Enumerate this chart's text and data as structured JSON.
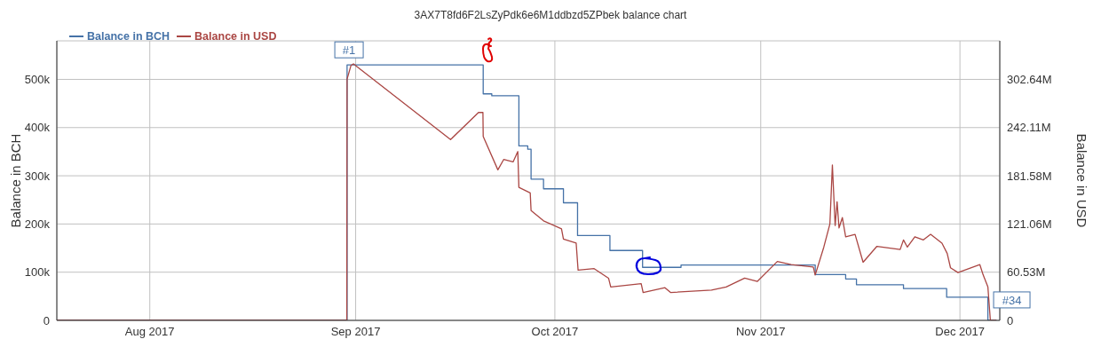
{
  "chart_data": {
    "type": "line",
    "title": "3AX7T8fd6F2LsZyPdk6e6M1ddbzd5ZPbek balance chart",
    "ylabel": "Balance in BCH",
    "y2label": "Balance in USD",
    "xlim": [
      "2017-07-18",
      "2017-12-07"
    ],
    "xticks": [
      {
        "value": "2017-08-01",
        "label": "Aug 2017"
      },
      {
        "value": "2017-09-01",
        "label": "Sep 2017"
      },
      {
        "value": "2017-10-01",
        "label": "Oct 2017"
      },
      {
        "value": "2017-11-01",
        "label": "Nov 2017"
      },
      {
        "value": "2017-12-01",
        "label": "Dec 2017"
      }
    ],
    "ylim": [
      0,
      580000
    ],
    "yticks": [
      0,
      {
        "value": 100000,
        "label": "100k"
      },
      {
        "value": 200000,
        "label": "200k"
      },
      {
        "value": 300000,
        "label": "300k"
      },
      {
        "value": 400000,
        "label": "400k"
      },
      {
        "value": 500000,
        "label": "500k"
      }
    ],
    "y2lim": [
      0,
      351000000
    ],
    "y2ticks": [
      0,
      {
        "value": 60530000,
        "label": "60.53M"
      },
      {
        "value": 121060000,
        "label": "121.06M"
      },
      {
        "value": 181580000,
        "label": "181.58M"
      },
      {
        "value": 242110000,
        "label": "242.11M"
      },
      {
        "value": 302640000,
        "label": "302.64M"
      }
    ],
    "grid": true,
    "legend": "top left",
    "marker": "none",
    "line_style": "solid",
    "series": [
      {
        "name": "Balance in BCH",
        "type": "step",
        "color": "#4572a7",
        "x": [
          "2017-07-18",
          "2017-08-30T17:00",
          "2017-09-20T05:00",
          "2017-09-21T12:00",
          "2017-09-25T14:00",
          "2017-09-26T22:00",
          "2017-09-27T10:00",
          "2017-09-29T07:00",
          "2017-10-02T07:00",
          "2017-10-04T10:00",
          "2017-10-09T07:00",
          "2017-10-14T05:00",
          "2017-10-20T00:00",
          "2017-11-09T05:00",
          "2017-11-13T19:00",
          "2017-11-15T10:00",
          "2017-11-22T12:00",
          "2017-11-29T00:00",
          "2017-12-05T05:00",
          "2017-12-06T12:00"
        ],
        "values": [
          0,
          530000,
          470000,
          466000,
          362000,
          355000,
          293000,
          273000,
          244000,
          176000,
          145000,
          110000,
          115000,
          95000,
          86000,
          74000,
          66000,
          48000,
          0,
          0
        ]
      },
      {
        "name": "Balance in USD",
        "type": "line",
        "axis": "y2",
        "color": "#aa4643",
        "x": [
          "2017-07-18",
          "2017-08-30T16:00",
          "2017-08-30T17:00",
          "2017-08-31T07:00",
          "2017-08-31T16:00",
          "2017-09-15T07:00",
          "2017-09-19T12:00",
          "2017-09-20T04:00",
          "2017-09-20T05:00",
          "2017-09-22T10:00",
          "2017-09-23T07:00",
          "2017-09-24T17:00",
          "2017-09-25T10:00",
          "2017-09-25T14:00",
          "2017-09-27T07:00",
          "2017-09-27T10:00",
          "2017-09-29T07:00",
          "2017-10-02T00:00",
          "2017-10-02T07:00",
          "2017-10-04T05:00",
          "2017-10-04T12:00",
          "2017-10-06T22:00",
          "2017-10-09T02:00",
          "2017-10-09T10:00",
          "2017-10-14T00:00",
          "2017-10-14T07:00",
          "2017-10-17T14:00",
          "2017-10-18T10:00",
          "2017-10-24T14:00",
          "2017-10-26T19:00",
          "2017-10-29T14:00",
          "2017-10-31T12:00",
          "2017-11-03T12:00",
          "2017-11-05T14:00",
          "2017-11-08T22:00",
          "2017-11-09T05:00",
          "2017-11-10T12:00",
          "2017-11-11T10:00",
          "2017-11-11T19:00",
          "2017-11-12T05:00",
          "2017-11-12T12:00",
          "2017-11-12T19:00",
          "2017-11-13T07:00",
          "2017-11-13T19:00",
          "2017-11-15T05:00",
          "2017-11-16T10:00",
          "2017-11-18T12:00",
          "2017-11-22T00:00",
          "2017-11-22T12:00",
          "2017-11-23T02:00",
          "2017-11-24T05:00",
          "2017-11-25T12:00",
          "2017-11-26T14:00",
          "2017-11-28T07:00",
          "2017-11-29T02:00",
          "2017-11-29T14:00",
          "2017-11-30T17:00",
          "2017-12-04T00:00",
          "2017-12-04T12:00",
          "2017-12-05T05:00",
          "2017-12-05T14:00",
          "2017-12-06T12:00"
        ],
        "values": [
          0,
          0,
          303000000,
          320000000,
          322000000,
          227000000,
          261000000,
          261000000,
          231000000,
          189000000,
          202000000,
          199000000,
          212000000,
          167000000,
          160000000,
          138000000,
          125000000,
          115000000,
          102000000,
          97000000,
          63000000,
          65000000,
          53000000,
          42000000,
          46000000,
          35000000,
          41000000,
          35000000,
          38000000,
          42000000,
          53000000,
          49000000,
          74000000,
          70000000,
          67000000,
          57000000,
          92000000,
          121000000,
          195000000,
          119000000,
          149000000,
          116000000,
          129000000,
          105000000,
          108000000,
          73000000,
          93000000,
          89000000,
          101000000,
          92000000,
          105000000,
          101000000,
          108000000,
          97000000,
          84000000,
          66000000,
          60000000,
          70000000,
          57000000,
          42000000,
          0,
          0
        ]
      }
    ],
    "annotations": [
      {
        "text": "#1",
        "x": "2017-08-31",
        "y": 530000
      },
      {
        "text": "#34",
        "x": "2017-12-05",
        "y": 48000
      }
    ]
  }
}
